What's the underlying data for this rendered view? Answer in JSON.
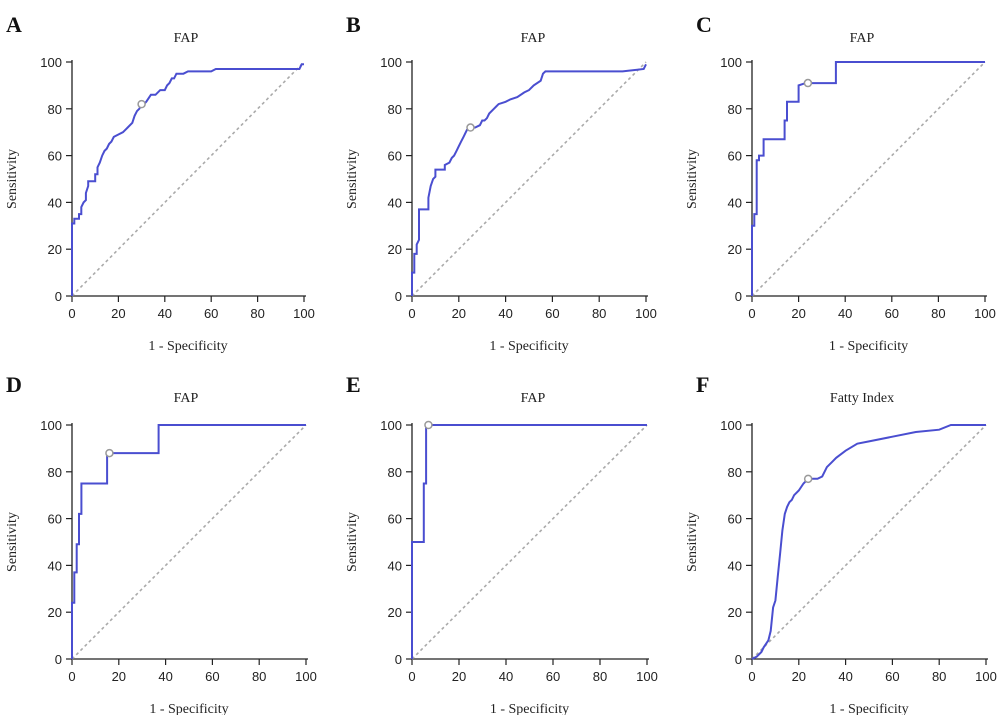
{
  "chart_data": [
    {
      "type": "line",
      "panel_letter": "A",
      "title": "FAP",
      "xlabel": "1 - Specificity",
      "ylabel": "Sensitivity",
      "xlim": [
        0,
        100
      ],
      "ylim": [
        0,
        100
      ],
      "x_ticks": [
        "0",
        "20",
        "40",
        "60",
        "80",
        "100"
      ],
      "y_ticks": [
        "0",
        "20",
        "40",
        "60",
        "80",
        "100"
      ],
      "colors": {
        "roc": "#4a4ed0",
        "diagonal": "#aaaaaa",
        "marker": "#999999"
      },
      "x": [
        0,
        0,
        1,
        1,
        3,
        3,
        4,
        4,
        5,
        6,
        6,
        7,
        7,
        10,
        10,
        11,
        11,
        12,
        13,
        14,
        15,
        16,
        17,
        18,
        20,
        22,
        24,
        26,
        27,
        28,
        29,
        30,
        31,
        32,
        34,
        36,
        38,
        40,
        41,
        42,
        43,
        44,
        45,
        46,
        48,
        50,
        55,
        60,
        62,
        64,
        70,
        80,
        85,
        90,
        95,
        98,
        99,
        100
      ],
      "y": [
        0,
        31,
        31,
        33,
        33,
        35,
        35,
        38,
        40,
        41,
        44,
        47,
        49,
        49,
        52,
        52,
        55,
        57,
        60,
        62,
        63,
        65,
        66,
        68,
        69,
        70,
        72,
        74,
        77,
        79,
        80,
        82,
        82,
        83,
        86,
        86,
        88,
        88,
        90,
        91,
        93,
        93,
        95,
        95,
        95,
        96,
        96,
        96,
        97,
        97,
        97,
        97,
        97,
        97,
        97,
        97,
        99,
        99
      ],
      "cutoff": {
        "x": 30,
        "y": 82
      }
    },
    {
      "type": "line",
      "panel_letter": "B",
      "title": "FAP",
      "xlabel": "1 - Specificity",
      "ylabel": "Sensitivity",
      "xlim": [
        0,
        100
      ],
      "ylim": [
        0,
        100
      ],
      "x_ticks": [
        "0",
        "20",
        "40",
        "60",
        "80",
        "100"
      ],
      "y_ticks": [
        "0",
        "20",
        "40",
        "60",
        "80",
        "100"
      ],
      "colors": {
        "roc": "#4a4ed0",
        "diagonal": "#aaaaaa",
        "marker": "#999999"
      },
      "x": [
        0,
        0,
        1,
        1,
        2,
        2,
        3,
        3,
        5,
        7,
        7,
        8,
        9,
        10,
        10,
        14,
        14,
        16,
        17,
        18,
        19,
        20,
        21,
        22,
        23,
        24,
        25,
        27,
        29,
        30,
        31,
        32,
        33,
        35,
        36,
        37,
        40,
        42,
        45,
        48,
        50,
        52,
        55,
        56,
        57,
        60,
        70,
        80,
        90,
        99,
        100
      ],
      "y": [
        0,
        10,
        10,
        18,
        18,
        22,
        24,
        37,
        37,
        37,
        42,
        47,
        50,
        51,
        54,
        54,
        56,
        57,
        59,
        60,
        62,
        64,
        66,
        68,
        70,
        72,
        72,
        72,
        73,
        75,
        75,
        76,
        78,
        80,
        81,
        82,
        83,
        84,
        85,
        87,
        88,
        90,
        92,
        95,
        96,
        96,
        96,
        96,
        96,
        97,
        99
      ],
      "cutoff": {
        "x": 25,
        "y": 72
      }
    },
    {
      "type": "line",
      "panel_letter": "C",
      "title": "FAP",
      "xlabel": "1 - Specificity",
      "ylabel": "Sensitivity",
      "xlim": [
        0,
        100
      ],
      "ylim": [
        0,
        100
      ],
      "x_ticks": [
        "0",
        "20",
        "40",
        "60",
        "80",
        "100"
      ],
      "y_ticks": [
        "0",
        "20",
        "40",
        "60",
        "80",
        "100"
      ],
      "colors": {
        "roc": "#4a4ed0",
        "diagonal": "#aaaaaa",
        "marker": "#999999"
      },
      "x": [
        0,
        0,
        1,
        1,
        2,
        2,
        3,
        3,
        5,
        5,
        10,
        14,
        14,
        15,
        15,
        20,
        20,
        23,
        24,
        25,
        36,
        36,
        40,
        100
      ],
      "y": [
        0,
        30,
        30,
        35,
        35,
        58,
        58,
        60,
        60,
        67,
        67,
        67,
        75,
        75,
        83,
        83,
        90,
        91,
        91,
        91,
        91,
        100,
        100,
        100
      ],
      "cutoff": {
        "x": 24,
        "y": 91
      }
    },
    {
      "type": "line",
      "panel_letter": "D",
      "title": "FAP",
      "xlabel": "1 - Specificity",
      "ylabel": "Sensitivity",
      "xlim": [
        0,
        100
      ],
      "ylim": [
        0,
        100
      ],
      "x_ticks": [
        "0",
        "20",
        "40",
        "60",
        "80",
        "100"
      ],
      "y_ticks": [
        "0",
        "20",
        "40",
        "60",
        "80",
        "100"
      ],
      "colors": {
        "roc": "#4a4ed0",
        "diagonal": "#aaaaaa",
        "marker": "#999999"
      },
      "x": [
        0,
        0,
        1,
        1,
        2,
        2,
        3,
        3,
        4,
        4,
        5,
        5,
        10,
        15,
        15,
        16,
        37,
        37,
        50,
        100
      ],
      "y": [
        0,
        24,
        24,
        37,
        37,
        49,
        49,
        62,
        62,
        75,
        75,
        75,
        75,
        75,
        88,
        88,
        88,
        100,
        100,
        100
      ],
      "cutoff": {
        "x": 16,
        "y": 88
      }
    },
    {
      "type": "line",
      "panel_letter": "E",
      "title": "FAP",
      "xlabel": "1 - Specificity",
      "ylabel": "Sensitivity",
      "xlim": [
        0,
        100
      ],
      "ylim": [
        0,
        100
      ],
      "x_ticks": [
        "0",
        "20",
        "40",
        "60",
        "80",
        "100"
      ],
      "y_ticks": [
        "0",
        "20",
        "40",
        "60",
        "80",
        "100"
      ],
      "colors": {
        "roc": "#4a4ed0",
        "diagonal": "#aaaaaa",
        "marker": "#999999"
      },
      "x": [
        0,
        0,
        5,
        5,
        6,
        6,
        7,
        7,
        10,
        100
      ],
      "y": [
        0,
        50,
        50,
        75,
        75,
        100,
        100,
        100,
        100,
        100
      ],
      "cutoff": {
        "x": 7,
        "y": 100
      }
    },
    {
      "type": "line",
      "panel_letter": "F",
      "title": "Fatty Index",
      "xlabel": "1 - Specificity",
      "ylabel": "Sensitivity",
      "xlim": [
        0,
        100
      ],
      "ylim": [
        0,
        100
      ],
      "x_ticks": [
        "0",
        "20",
        "40",
        "60",
        "80",
        "100"
      ],
      "y_ticks": [
        "0",
        "20",
        "40",
        "60",
        "80",
        "100"
      ],
      "colors": {
        "roc": "#4a4ed0",
        "diagonal": "#aaaaaa",
        "marker": "#999999"
      },
      "x": [
        0,
        2,
        4,
        5,
        7,
        8,
        9,
        10,
        11,
        12,
        13,
        14,
        15,
        16,
        17,
        18,
        20,
        22,
        24,
        26,
        28,
        30,
        32,
        34,
        36,
        40,
        45,
        50,
        60,
        70,
        80,
        85,
        90,
        100
      ],
      "y": [
        0,
        1,
        3,
        5,
        8,
        12,
        22,
        25,
        35,
        45,
        55,
        62,
        65,
        67,
        68,
        70,
        72,
        75,
        77,
        77,
        77,
        78,
        82,
        84,
        86,
        89,
        92,
        93,
        95,
        97,
        98,
        100,
        100,
        100
      ],
      "cutoff": {
        "x": 24,
        "y": 77
      }
    }
  ]
}
